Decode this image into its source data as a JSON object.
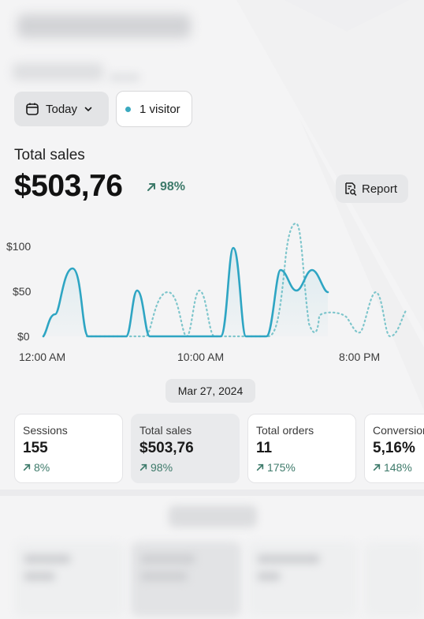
{
  "controls": {
    "date_label": "Today",
    "visitor_label": "1 visitor",
    "report_label": "Report"
  },
  "summary": {
    "title": "Total sales",
    "value": "$503,76",
    "delta": "98%"
  },
  "chart_data": {
    "type": "line",
    "title": "",
    "xlabel": "",
    "ylabel": "",
    "y_ticks": [
      "$0",
      "$50",
      "$100"
    ],
    "x_ticks": [
      "12:00 AM",
      "10:00 AM",
      "8:00 PM"
    ],
    "ylim": [
      0,
      100
    ],
    "grid": false,
    "colors": {
      "current": "#2ea5c3",
      "previous": "#7fc6cc"
    }
  },
  "date_chip": "Mar 27, 2024",
  "metrics": [
    {
      "label": "Sessions",
      "value": "155",
      "change": "8%"
    },
    {
      "label": "Total sales",
      "value": "$503,76",
      "change": "98%"
    },
    {
      "label": "Total orders",
      "value": "11",
      "change": "175%"
    },
    {
      "label": "Conversion rate",
      "value": "5,16%",
      "change": "148%"
    }
  ]
}
